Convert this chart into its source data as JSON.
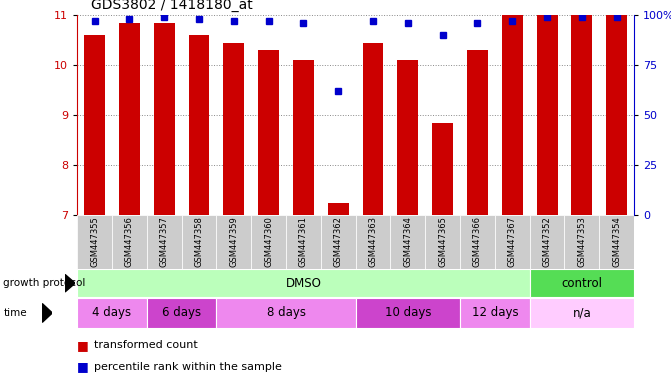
{
  "title": "GDS3802 / 1418180_at",
  "samples": [
    "GSM447355",
    "GSM447356",
    "GSM447357",
    "GSM447358",
    "GSM447359",
    "GSM447360",
    "GSM447361",
    "GSM447362",
    "GSM447363",
    "GSM447364",
    "GSM447365",
    "GSM447366",
    "GSM447367",
    "GSM447352",
    "GSM447353",
    "GSM447354"
  ],
  "transformed_count": [
    10.6,
    10.85,
    10.85,
    10.6,
    10.45,
    10.3,
    10.1,
    7.25,
    10.45,
    10.1,
    8.85,
    10.3,
    11.0,
    11.0,
    11.0,
    11.0
  ],
  "percentile_rank": [
    97,
    98,
    99,
    98,
    97,
    97,
    96,
    62,
    97,
    96,
    90,
    96,
    97,
    99,
    99,
    99
  ],
  "ylim_left": [
    7,
    11
  ],
  "ylim_right": [
    0,
    100
  ],
  "yticks_left": [
    7,
    8,
    9,
    10,
    11
  ],
  "yticks_right": [
    0,
    25,
    50,
    75,
    100
  ],
  "bar_color": "#cc0000",
  "dot_color": "#0000cc",
  "bar_width": 0.6,
  "growth_protocol_groups": [
    {
      "label": "DMSO",
      "start": 0,
      "end": 13,
      "color": "#bbffbb"
    },
    {
      "label": "control",
      "start": 13,
      "end": 16,
      "color": "#55dd55"
    }
  ],
  "time_groups": [
    {
      "label": "4 days",
      "start": 0,
      "end": 2,
      "color": "#ee88ee"
    },
    {
      "label": "6 days",
      "start": 2,
      "end": 4,
      "color": "#cc44cc"
    },
    {
      "label": "8 days",
      "start": 4,
      "end": 8,
      "color": "#ee88ee"
    },
    {
      "label": "10 days",
      "start": 8,
      "end": 11,
      "color": "#cc44cc"
    },
    {
      "label": "12 days",
      "start": 11,
      "end": 13,
      "color": "#ee88ee"
    },
    {
      "label": "n/a",
      "start": 13,
      "end": 16,
      "color": "#ffccff"
    }
  ],
  "bg_color": "#ffffff",
  "grid_color": "#888888",
  "left_axis_color": "#cc0000",
  "right_axis_color": "#0000cc",
  "label_bg": "#cccccc"
}
